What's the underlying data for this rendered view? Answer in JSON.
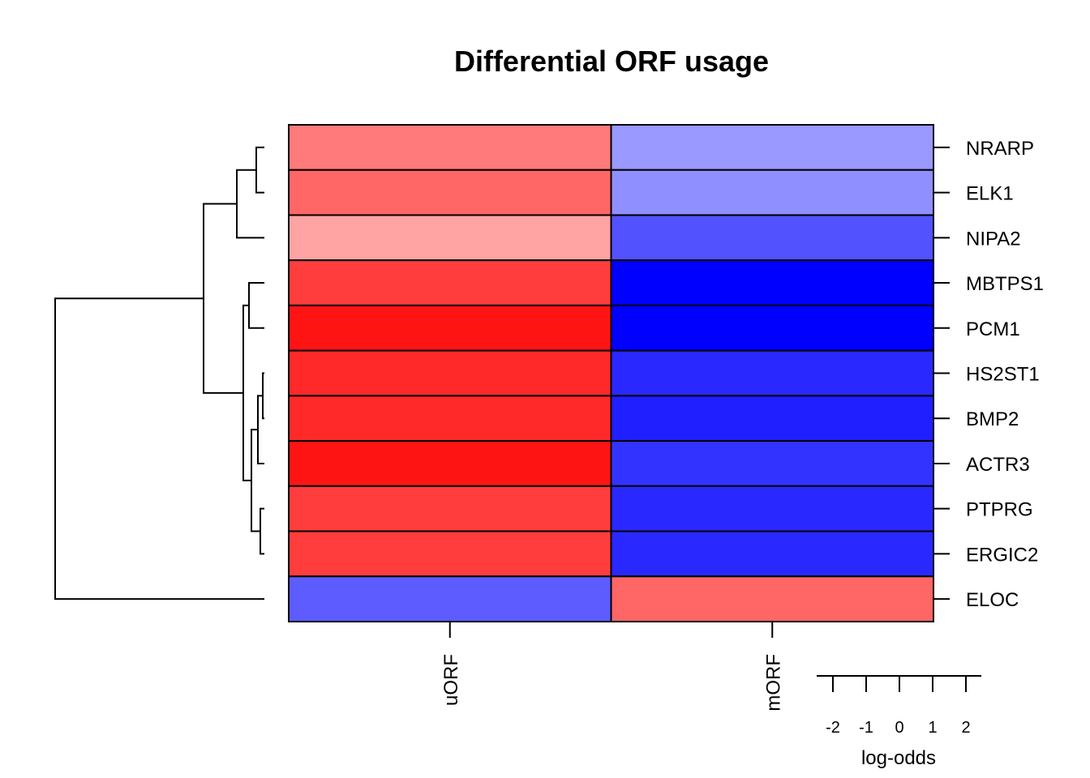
{
  "chart_data": {
    "type": "heatmap",
    "title": "Differential ORF usage",
    "rows": [
      "NRARP",
      "ELK1",
      "NIPA2",
      "MBTPS1",
      "PCM1",
      "HS2ST1",
      "BMP2",
      "ACTR3",
      "PTPRG",
      "ERGIC2",
      "ELOC"
    ],
    "columns": [
      "uORF",
      "mORF"
    ],
    "values": [
      [
        1.3,
        -1.0
      ],
      [
        1.5,
        -1.1
      ],
      [
        0.9,
        -1.7
      ],
      [
        1.9,
        -2.5
      ],
      [
        2.3,
        -2.5
      ],
      [
        2.1,
        -2.1
      ],
      [
        2.1,
        -2.2
      ],
      [
        2.3,
        -2.0
      ],
      [
        1.9,
        -2.1
      ],
      [
        1.9,
        -2.1
      ],
      [
        -1.6,
        1.5
      ]
    ],
    "color_scale": {
      "min": -2.5,
      "max": 2.5,
      "low_color": "#0000ff",
      "mid_color": "#ffffff",
      "high_color": "#ff0000"
    },
    "legend": {
      "title": "log-odds",
      "ticks": [
        "-2",
        "-1",
        "0",
        "1",
        "2"
      ],
      "placement": "bottom-right"
    },
    "row_dendrogram": true
  }
}
